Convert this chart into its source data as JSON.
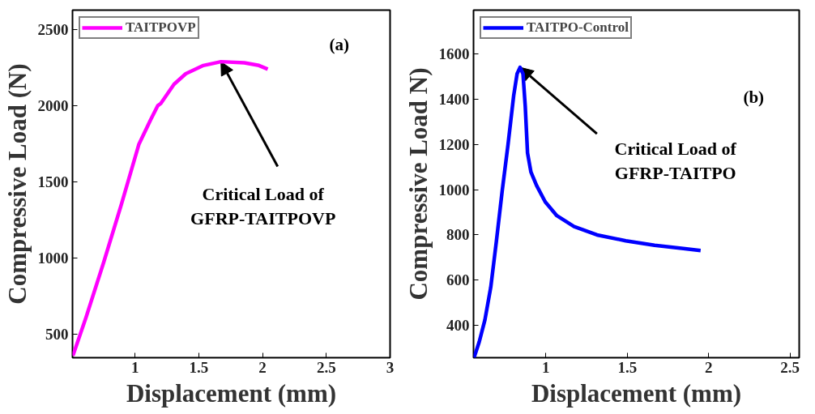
{
  "chart_data": [
    {
      "type": "line",
      "xlabel": "Displacement (mm)",
      "ylabel": "Compressive Load (N)",
      "xlim": [
        0.51,
        3
      ],
      "ylim": [
        347,
        2626
      ],
      "xticks": [
        1,
        1.5,
        2,
        2.5,
        3
      ],
      "yticks": [
        500,
        1000,
        1500,
        2000,
        2500
      ],
      "legend": "top left",
      "grid": false,
      "series": [
        {
          "name": "TAITPOVP",
          "color": "#ff00ff",
          "x": [
            0.513,
            0.616,
            0.754,
            0.892,
            1.03,
            1.122,
            1.179,
            1.202,
            1.306,
            1.398,
            1.536,
            1.674,
            1.857,
            1.972,
            2.041
          ],
          "values": [
            360,
            611,
            971,
            1349,
            1745,
            1906,
            2000,
            2014,
            2140,
            2209,
            2263,
            2288,
            2281,
            2263,
            2239
          ]
        }
      ],
      "annotations": [
        {
          "text": "Critical Load of\nGFRP-TAITPOVP",
          "x": 1.674,
          "y": 2288
        },
        "(a)"
      ]
    },
    {
      "type": "line",
      "xlabel": "Displacement (mm)",
      "ylabel": "Compressive Load N)",
      "xlim": [
        0.555,
        2.557
      ],
      "ylim": [
        257,
        1794
      ],
      "xticks": [
        1,
        1.5,
        2,
        2.5
      ],
      "yticks": [
        400,
        600,
        800,
        1000,
        1200,
        1400,
        1600
      ],
      "legend": "top left",
      "grid": false,
      "series": [
        {
          "name": "TAITPO-Control",
          "color": "#0000ff",
          "x": [
            0.558,
            0.59,
            0.625,
            0.661,
            0.696,
            0.731,
            0.767,
            0.802,
            0.823,
            0.841,
            0.859,
            0.873,
            0.887,
            0.908,
            0.943,
            0.996,
            1.067,
            1.173,
            1.314,
            1.491,
            1.668,
            1.845,
            1.951
          ],
          "values": [
            257,
            327,
            424,
            569,
            775,
            993,
            1199,
            1417,
            1513,
            1541,
            1513,
            1368,
            1162,
            1078,
            1018,
            946,
            885,
            837,
            800,
            774,
            754,
            740,
            731
          ]
        }
      ],
      "annotations": [
        {
          "text": "Critical Load of\nGFRP-TAITPO",
          "x": 0.841,
          "y": 1541
        },
        "(b)"
      ]
    }
  ]
}
